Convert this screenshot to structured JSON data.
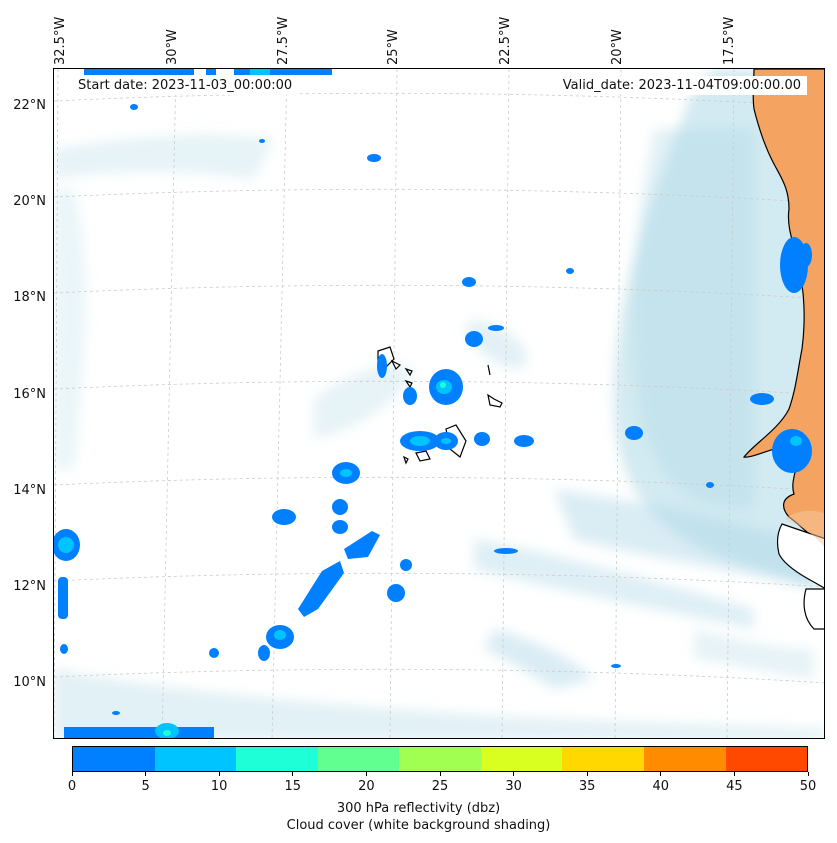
{
  "map": {
    "longitude_labels": [
      "32.5°W",
      "30°W",
      "27.5°W",
      "25°W",
      "22.5°W",
      "20°W",
      "17.5°W"
    ],
    "latitude_labels": [
      "22°N",
      "20°N",
      "18°N",
      "16°N",
      "14°N",
      "12°N",
      "10°N"
    ],
    "start_date": "Start date: 2023-11-03_00:00:00",
    "valid_date": "Valid_date: 2023-11-04T09:00:00.00",
    "colors": {
      "land": "#f4a460",
      "cloud": "#add8e6",
      "ocean": "#ffffff",
      "coastline": "#000000"
    }
  },
  "colorbar": {
    "ticks": [
      "0",
      "5",
      "10",
      "15",
      "20",
      "25",
      "30",
      "35",
      "40",
      "45",
      "50"
    ],
    "colors": [
      "#0080ff",
      "#00c4ff",
      "#1effd8",
      "#60ff90",
      "#a0ff50",
      "#d8ff20",
      "#ffd800",
      "#ff8c00",
      "#ff4800"
    ],
    "label": "300 hPa reflectivity (dbz)",
    "sublabel": "Cloud cover (white background shading)"
  }
}
